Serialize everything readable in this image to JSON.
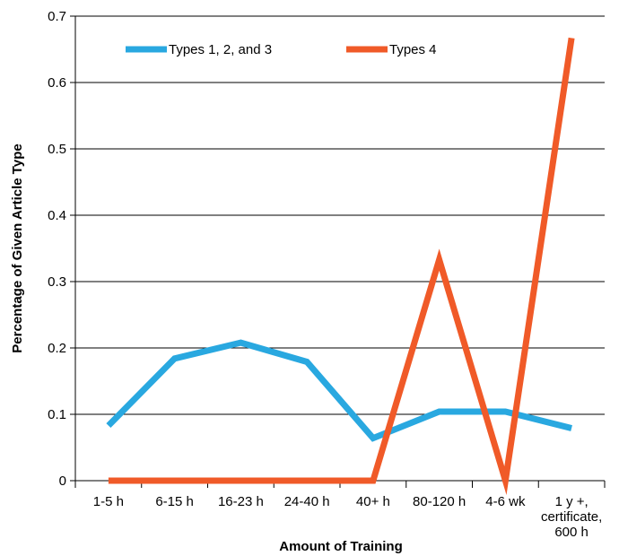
{
  "chart_data": {
    "type": "line",
    "title": "",
    "xlabel": "Amount of Training",
    "ylabel": "Percentage of Given Article Type",
    "categories": [
      "1-5 h",
      "6-15 h",
      "16-23 h",
      "24-40 h",
      "40+ h",
      "80-120 h",
      "4-6 wk",
      "1 y +, certificate, 600 h"
    ],
    "category_lines": [
      [
        "1-5 h"
      ],
      [
        "6-15 h"
      ],
      [
        "16-23 h"
      ],
      [
        "24-40 h"
      ],
      [
        "40+ h"
      ],
      [
        "80-120 h"
      ],
      [
        "4-6 wk"
      ],
      [
        "1 y +,",
        "certificate,",
        "600 h"
      ]
    ],
    "ylim": [
      0,
      0.7
    ],
    "yticks": [
      0,
      0.1,
      0.2,
      0.3,
      0.4,
      0.5,
      0.6,
      0.7
    ],
    "ytick_labels": [
      "0",
      "0.1",
      "0.2",
      "0.3",
      "0.4",
      "0.5",
      "0.6",
      "0.7"
    ],
    "grid": true,
    "legend_position": "top",
    "series": [
      {
        "name": "Types 1, 2, and 3",
        "color": "#29a8e0",
        "values": [
          0.083,
          0.184,
          0.208,
          0.179,
          0.064,
          0.104,
          0.104,
          0.079
        ]
      },
      {
        "name": "Types 4",
        "color": "#f05a28",
        "values": [
          0,
          0,
          0,
          0,
          0,
          0.333,
          0,
          0.667
        ]
      }
    ]
  }
}
